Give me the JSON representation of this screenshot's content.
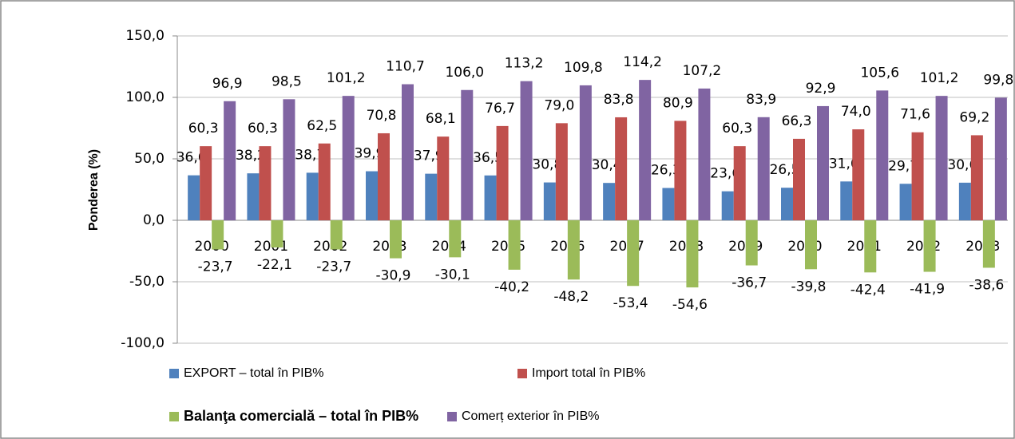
{
  "chart_data": {
    "type": "bar",
    "y_label": "Ponderea (%)",
    "categories": [
      "2000",
      "2001",
      "2002",
      "2003",
      "2004",
      "2005",
      "2006",
      "2007",
      "2008",
      "2009",
      "2010",
      "2011",
      "2012",
      "2013"
    ],
    "series": [
      {
        "name": "EXPORT – total în PIB%",
        "color": "#4f81bd",
        "values": [
          36.6,
          38.2,
          38.7,
          39.9,
          37.9,
          36.5,
          30.8,
          30.4,
          26.3,
          23.6,
          26.5,
          31.6,
          29.7,
          30.6
        ],
        "value_labels": [
          "36,6",
          "38,2",
          "38,7",
          "39,9",
          "37,9",
          "36,5",
          "30,8",
          "30,4",
          "26,3",
          "23,6",
          "26,5",
          "31,6",
          "29,7",
          "30,6"
        ]
      },
      {
        "name": "Import total în PIB%",
        "color": "#c0504d",
        "values": [
          60.3,
          60.3,
          62.5,
          70.8,
          68.1,
          76.7,
          79,
          83.8,
          80.9,
          60.3,
          66.3,
          74,
          71.6,
          69.2
        ],
        "value_labels": [
          "60,3",
          "60,3",
          "62,5",
          "70,8",
          "68,1",
          "76,7",
          "79,0",
          "83,8",
          "80,9",
          "60,3",
          "66,3",
          "74,0",
          "71,6",
          "69,2"
        ]
      },
      {
        "name": "Balanţa comercială  – total în PIB%",
        "color": "#9bbb59",
        "values": [
          -23.7,
          -22.1,
          -23.7,
          -30.9,
          -30.1,
          -40.2,
          -48.2,
          -53.4,
          -54.6,
          -36.7,
          -39.8,
          -42.4,
          -41.9,
          -38.6
        ],
        "value_labels": [
          "-23,7",
          "-22,1",
          "-23,7",
          "-30,9",
          "-30,1",
          "-40,2",
          "-48,2",
          "-53,4",
          "-54,6",
          "-36,7",
          "-39,8",
          "-42,4",
          "-41,9",
          "-38,6"
        ]
      },
      {
        "name": "Comerț exterior în PIB%",
        "color": "#8064a2",
        "values": [
          96.9,
          98.5,
          101.2,
          110.7,
          106,
          113.2,
          109.8,
          114.2,
          107.2,
          83.9,
          92.9,
          105.6,
          101.2,
          99.8
        ],
        "value_labels": [
          "96,9",
          "98,5",
          "101,2",
          "110,7",
          "106,0",
          "113,2",
          "109,8",
          "114,2",
          "107,2",
          "83,9",
          "92,9",
          "105,6",
          "101,2",
          "99,8"
        ]
      }
    ],
    "ylim": [
      -100,
      150
    ],
    "yticks": [
      {
        "value": -100,
        "label": "-100,0"
      },
      {
        "value": -50,
        "label": "-50,0"
      },
      {
        "value": 0,
        "label": "0,0"
      },
      {
        "value": 50,
        "label": "50,0"
      },
      {
        "value": 100,
        "label": "100,0"
      },
      {
        "value": 150,
        "label": "150,0"
      }
    ],
    "grid": true,
    "legend": "bottom"
  }
}
